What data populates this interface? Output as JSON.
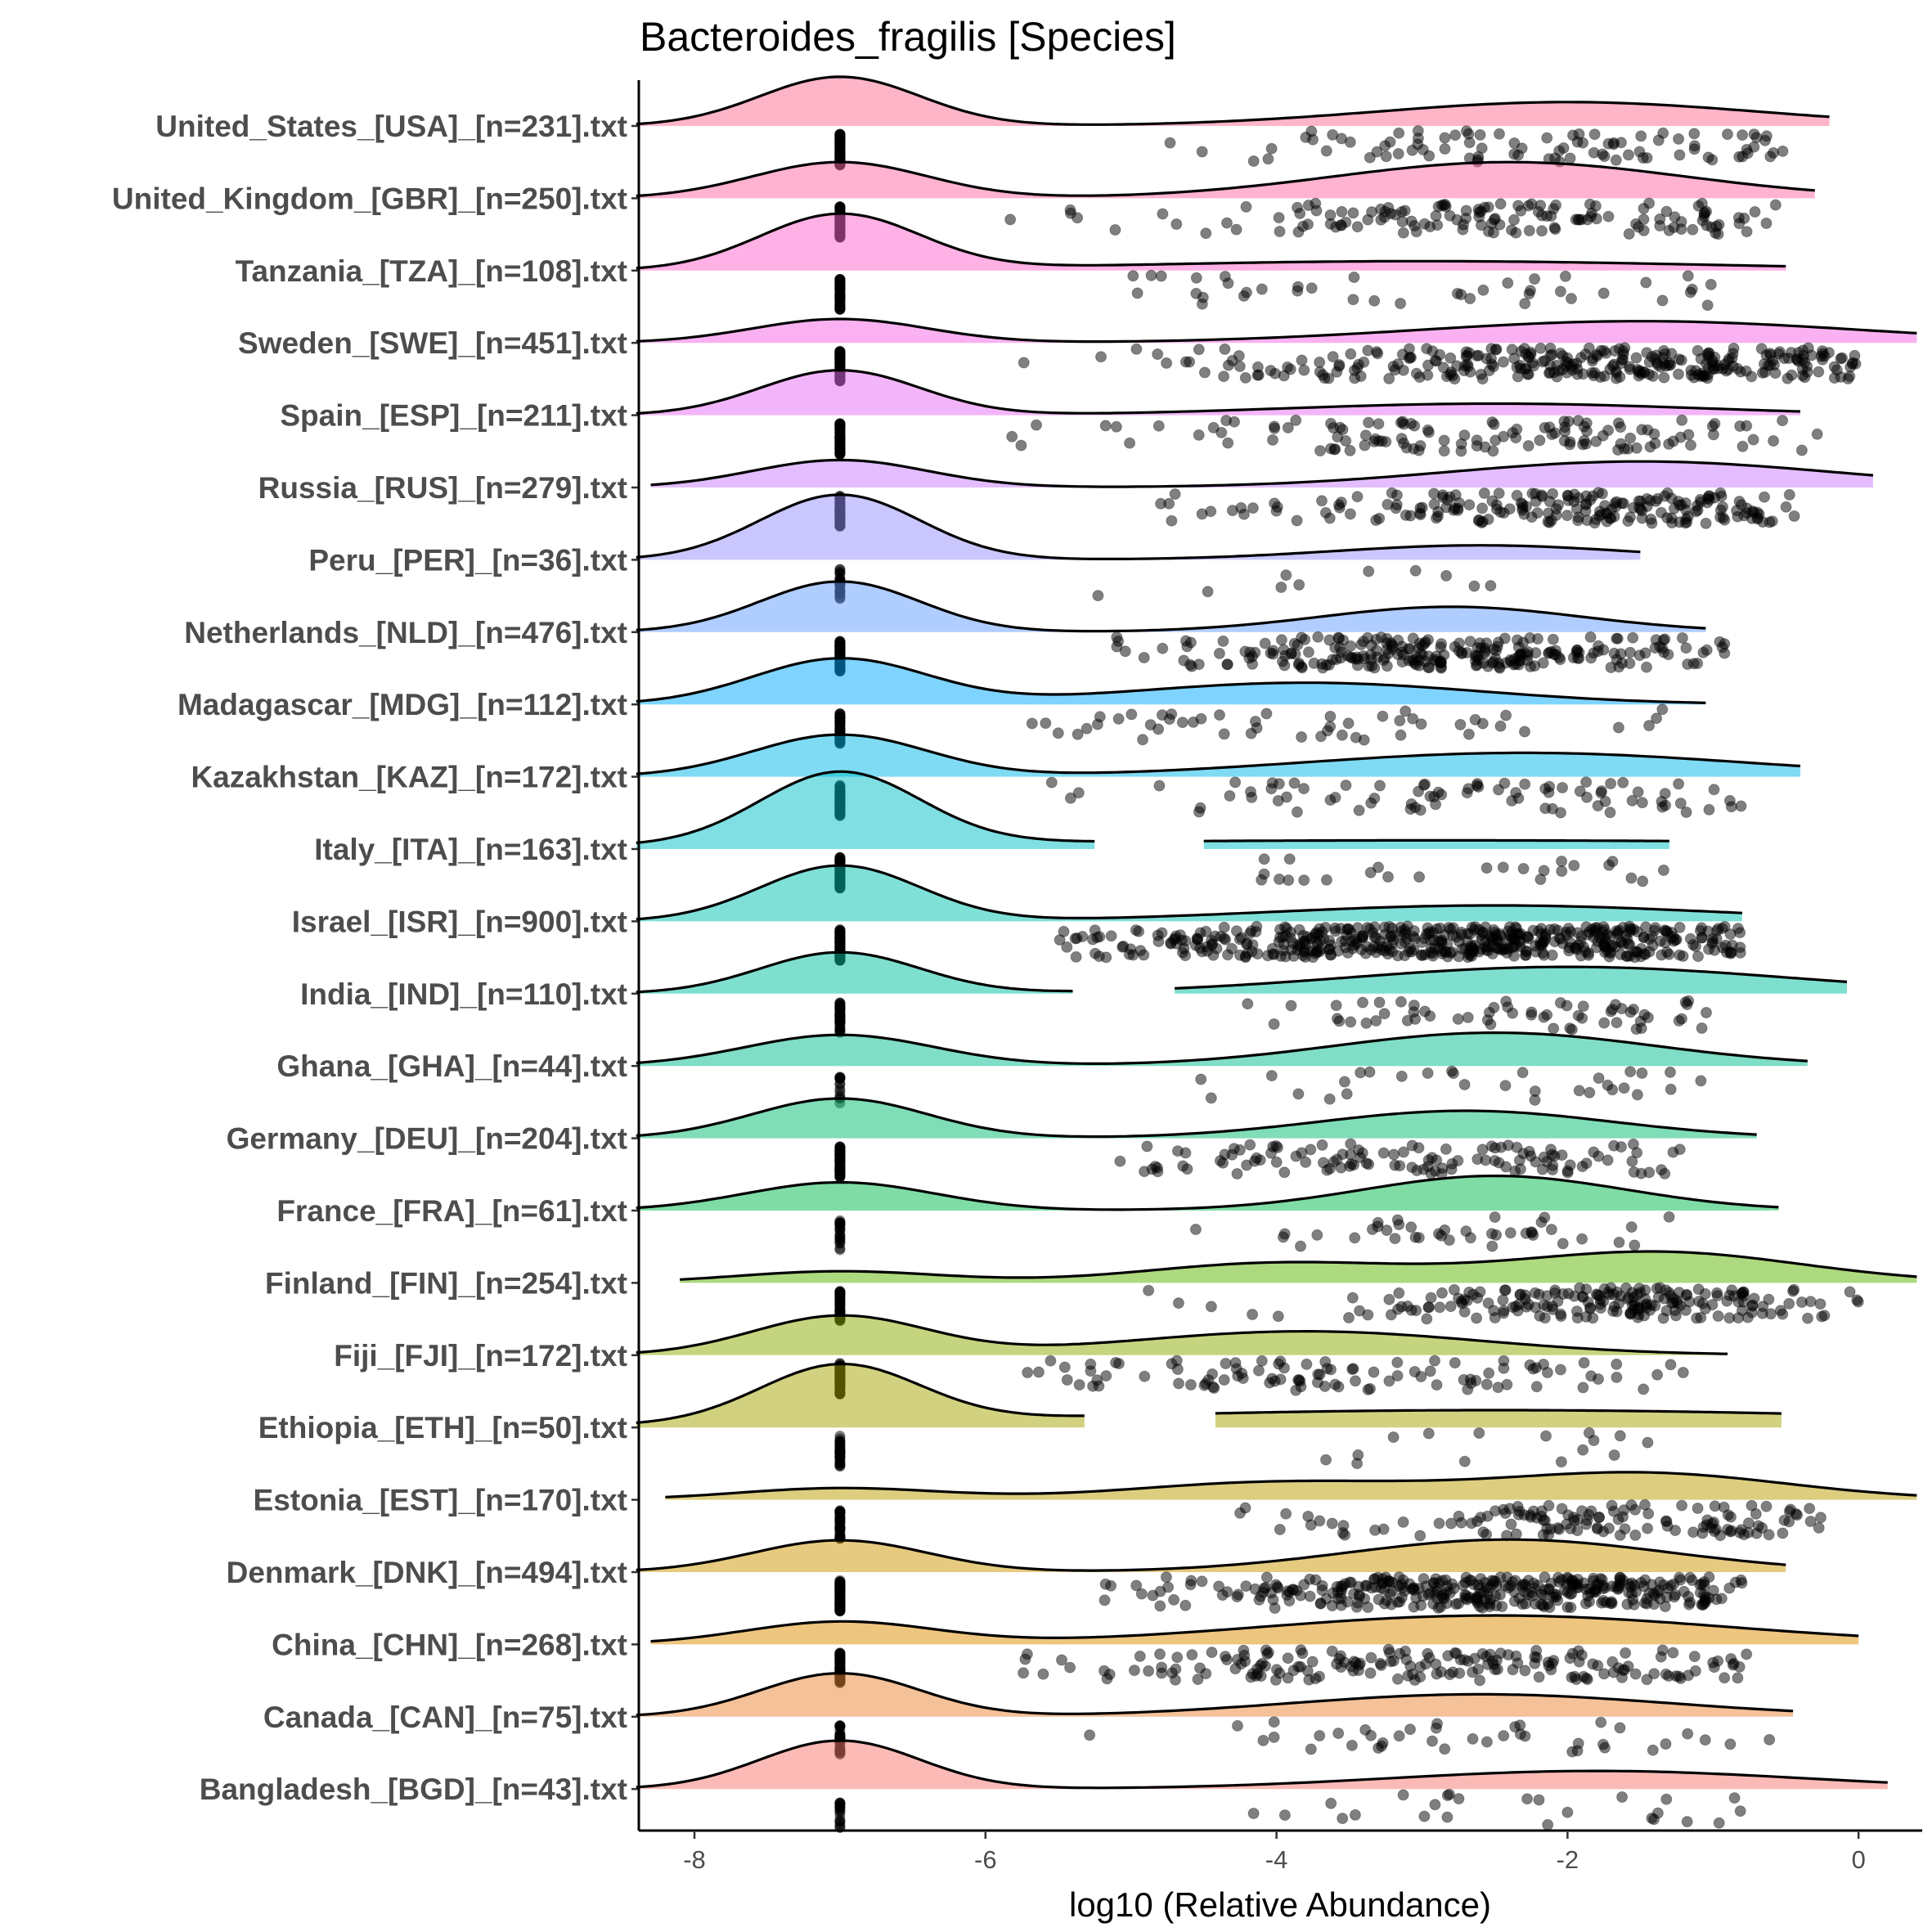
{
  "chart_data": {
    "type": "ridgeline-raincloud",
    "title": "Bacteroides_fragilis [Species]",
    "xlabel": "log10 (Relative Abundance)",
    "ylabel": "",
    "xlim": [
      -8.4,
      0.4
    ],
    "xticks": [
      -8,
      -6,
      -4,
      -2,
      0
    ],
    "xtick_labels": [
      "-8",
      "-6",
      "-4",
      "-2",
      "0"
    ],
    "zero_value": -7.0,
    "fill_alpha": 0.5,
    "point_color": "#000000",
    "point_alpha": 0.5,
    "groups": [
      {
        "label": "United_States_[USA]_[n=231].txt",
        "color": "#FF6C91",
        "comps": [
          [
            -7,
            0.55,
            0.68
          ],
          [
            -2.0,
            1.3,
            0.33
          ]
        ],
        "segments": [
          [
            -8.4,
            -0.2
          ]
        ],
        "points": {
          "nonzero": 90,
          "range": [
            -5,
            -0.5
          ]
        }
      },
      {
        "label": "United_Kingdom_[GBR]_[n=250].txt",
        "color": "#FF67A4",
        "comps": [
          [
            -7,
            0.6,
            0.5
          ],
          [
            -2.4,
            1.2,
            0.5
          ]
        ],
        "segments": [
          [
            -8.4,
            -0.3
          ]
        ],
        "points": {
          "nonzero": 140,
          "range": [
            -6,
            -0.5
          ]
        }
      },
      {
        "label": "Tanzania_[TZA]_[n=108].txt",
        "color": "#FF61C9",
        "comps": [
          [
            -7,
            0.55,
            0.77
          ],
          [
            -3,
            2,
            0.13
          ]
        ],
        "segments": [
          [
            -8.4,
            -0.5
          ]
        ],
        "points": {
          "nonzero": 40,
          "range": [
            -5.2,
            -1
          ]
        }
      },
      {
        "label": "Sweden_[SWE]_[n=451].txt",
        "color": "#F564E3",
        "comps": [
          [
            -7,
            0.6,
            0.33
          ],
          [
            -1.5,
            1.5,
            0.3
          ]
        ],
        "segments": [
          [
            -8.4,
            0.4
          ]
        ],
        "points": {
          "nonzero": 300,
          "range": [
            -5.8,
            0
          ]
        }
      },
      {
        "label": "Spain_[ESP]_[n=211].txt",
        "color": "#E76BF3",
        "comps": [
          [
            -7,
            0.55,
            0.62
          ],
          [
            -2.5,
            1.4,
            0.16
          ]
        ],
        "segments": [
          [
            -8.4,
            -0.4
          ]
        ],
        "points": {
          "nonzero": 120,
          "range": [
            -6,
            -0.1
          ]
        }
      },
      {
        "label": "Russia_[RUS]_[n=279].txt",
        "color": "#C77CFF",
        "comps": [
          [
            -7,
            0.6,
            0.38
          ],
          [
            -1.5,
            1.3,
            0.36
          ]
        ],
        "segments": [
          [
            -8.3,
            0.1
          ]
        ],
        "points": {
          "nonzero": 200,
          "range": [
            -5.8,
            -0.4
          ]
        }
      },
      {
        "label": "Peru_[PER]_[n=36].txt",
        "color": "#9590FF",
        "comps": [
          [
            -7,
            0.55,
            0.9
          ],
          [
            -2.6,
            1,
            0.2
          ]
        ],
        "segments": [
          [
            -8.4,
            -1.5
          ]
        ],
        "points": {
          "nonzero": 10,
          "range": [
            -5.8,
            -2.4
          ]
        }
      },
      {
        "label": "Netherlands_[NLD]_[n=476].txt",
        "color": "#619CFF",
        "comps": [
          [
            -7,
            0.55,
            0.7
          ],
          [
            -2.8,
            0.9,
            0.35
          ]
        ],
        "segments": [
          [
            -8.4,
            -1.05
          ]
        ],
        "points": {
          "nonzero": 250,
          "range": [
            -5.6,
            -0.9
          ]
        }
      },
      {
        "label": "Madagascar_[MDG]_[n=112].txt",
        "color": "#00A9FF",
        "comps": [
          [
            -7,
            0.6,
            0.63
          ],
          [
            -3.8,
            1.2,
            0.3
          ]
        ],
        "segments": [
          [
            -8.4,
            -1.05
          ]
        ],
        "points": {
          "nonzero": 50,
          "range": [
            -5.8,
            -0.4
          ]
        }
      },
      {
        "label": "Kazakhstan_[KAZ]_[n=172].txt",
        "color": "#00B8E7",
        "comps": [
          [
            -7,
            0.6,
            0.58
          ],
          [
            -2.3,
            1.5,
            0.33
          ]
        ],
        "segments": [
          [
            -8.4,
            -0.4
          ]
        ],
        "points": {
          "nonzero": 80,
          "range": [
            -5.6,
            -0.8
          ]
        }
      },
      {
        "label": "Italy_[ITA]_[n=163].txt",
        "color": "#00C0C7",
        "comps": [
          [
            -7,
            0.55,
            1.0
          ],
          [
            -2.9,
            4,
            0.12
          ]
        ],
        "segments": [
          [
            -8.4,
            -5.25
          ],
          [
            -4.5,
            -1.3
          ]
        ],
        "points": {
          "nonzero": 25,
          "range": [
            -4.2,
            -1.3
          ]
        }
      },
      {
        "label": "Israel_[ISR]_[n=900].txt",
        "color": "#00C1B2",
        "comps": [
          [
            -7,
            0.55,
            0.77
          ],
          [
            -2.5,
            1.5,
            0.22
          ]
        ],
        "segments": [
          [
            -8.4,
            -0.8
          ]
        ],
        "points": {
          "nonzero": 500,
          "range": [
            -5.5,
            -0.8
          ]
        }
      },
      {
        "label": "India_[IND]_[n=110].txt",
        "color": "#00BFA0",
        "comps": [
          [
            -7,
            0.55,
            0.57
          ],
          [
            -2,
            1.5,
            0.37
          ]
        ],
        "segments": [
          [
            -8.4,
            -5.4
          ],
          [
            -4.7,
            -0.08
          ]
        ],
        "points": {
          "nonzero": 60,
          "range": [
            -4.3,
            -1
          ]
        }
      },
      {
        "label": "Ghana_[GHA]_[n=44].txt",
        "color": "#00BD8B",
        "comps": [
          [
            -7,
            0.65,
            0.43
          ],
          [
            -2.5,
            1.1,
            0.46
          ]
        ],
        "segments": [
          [
            -8.4,
            -0.35
          ]
        ],
        "points": {
          "nonzero": 30,
          "range": [
            -5.2,
            -1
          ]
        }
      },
      {
        "label": "Germany_[DEU]_[n=204].txt",
        "color": "#00BB70",
        "comps": [
          [
            -7,
            0.6,
            0.55
          ],
          [
            -2.7,
            1,
            0.38
          ]
        ],
        "segments": [
          [
            -8.4,
            -0.7
          ]
        ],
        "points": {
          "nonzero": 120,
          "range": [
            -5.5,
            -1.1
          ]
        }
      },
      {
        "label": "France_[FRA]_[n=61].txt",
        "color": "#00BA4A",
        "comps": [
          [
            -7,
            0.65,
            0.39
          ],
          [
            -2.5,
            0.9,
            0.48
          ]
        ],
        "segments": [
          [
            -8.4,
            -0.55
          ]
        ],
        "points": {
          "nonzero": 40,
          "range": [
            -4.9,
            -1.3
          ]
        }
      },
      {
        "label": "Finland_[FIN]_[n=254].txt",
        "color": "#5BB300",
        "comps": [
          [
            -7,
            0.7,
            0.16
          ],
          [
            -4,
            0.9,
            0.27
          ],
          [
            -1.4,
            1,
            0.43
          ]
        ],
        "segments": [
          [
            -8.1,
            0.4
          ]
        ],
        "points": {
          "nonzero": 200,
          "range": [
            -5.6,
            0
          ]
        }
      },
      {
        "label": "Fiji_[FJI]_[n=172].txt",
        "color": "#8BAB00",
        "comps": [
          [
            -7,
            0.6,
            0.54
          ],
          [
            -3.8,
            1.2,
            0.33
          ]
        ],
        "segments": [
          [
            -8.4,
            -0.9
          ]
        ],
        "points": {
          "nonzero": 100,
          "range": [
            -5.8,
            -1.1
          ]
        }
      },
      {
        "label": "Ethiopia_[ETH]_[n=50].txt",
        "color": "#A5A400",
        "comps": [
          [
            -7,
            0.55,
            0.8
          ],
          [
            -2.5,
            3,
            0.24
          ]
        ],
        "segments": [
          [
            -8.4,
            -5.32
          ],
          [
            -4.42,
            -0.53
          ]
        ],
        "points": {
          "nonzero": 15,
          "range": [
            -3.9,
            -1.3
          ]
        }
      },
      {
        "label": "Estonia_[EST]_[n=170].txt",
        "color": "#BB9D00",
        "comps": [
          [
            -7,
            0.7,
            0.16
          ],
          [
            -4,
            1,
            0.24
          ],
          [
            -1.5,
            1,
            0.37
          ]
        ],
        "segments": [
          [
            -8.2,
            0.4
          ]
        ],
        "points": {
          "nonzero": 130,
          "range": [
            -5.8,
            -0.2
          ]
        }
      },
      {
        "label": "Denmark_[DNK]_[n=494].txt",
        "color": "#CD9600",
        "comps": [
          [
            -7,
            0.6,
            0.44
          ],
          [
            -2.4,
            1.1,
            0.45
          ]
        ],
        "segments": [
          [
            -8.4,
            -0.5
          ]
        ],
        "points": {
          "nonzero": 350,
          "range": [
            -5.2,
            -0.8
          ]
        }
      },
      {
        "label": "China_[CHN]_[n=268].txt",
        "color": "#DE8C00",
        "comps": [
          [
            -7,
            0.65,
            0.31
          ],
          [
            -2.5,
            1.6,
            0.4
          ]
        ],
        "segments": [
          [
            -8.3,
            0
          ]
        ],
        "points": {
          "nonzero": 180,
          "range": [
            -5.8,
            -0.7
          ]
        }
      },
      {
        "label": "Canada_[CAN]_[n=75].txt",
        "color": "#EA8331",
        "comps": [
          [
            -7,
            0.55,
            0.6
          ],
          [
            -2.6,
            1.3,
            0.31
          ]
        ],
        "segments": [
          [
            -8.4,
            -0.45
          ]
        ],
        "points": {
          "nonzero": 40,
          "range": [
            -5.6,
            -0.6
          ]
        }
      },
      {
        "label": "Bangladesh_[BGD]_[n=43].txt",
        "color": "#F8766D",
        "comps": [
          [
            -7,
            0.55,
            0.67
          ],
          [
            -1.8,
            1.4,
            0.25
          ]
        ],
        "segments": [
          [
            -8.4,
            0.2
          ]
        ],
        "points": {
          "nonzero": 25,
          "range": [
            -4.6,
            -0.5
          ]
        }
      }
    ]
  }
}
